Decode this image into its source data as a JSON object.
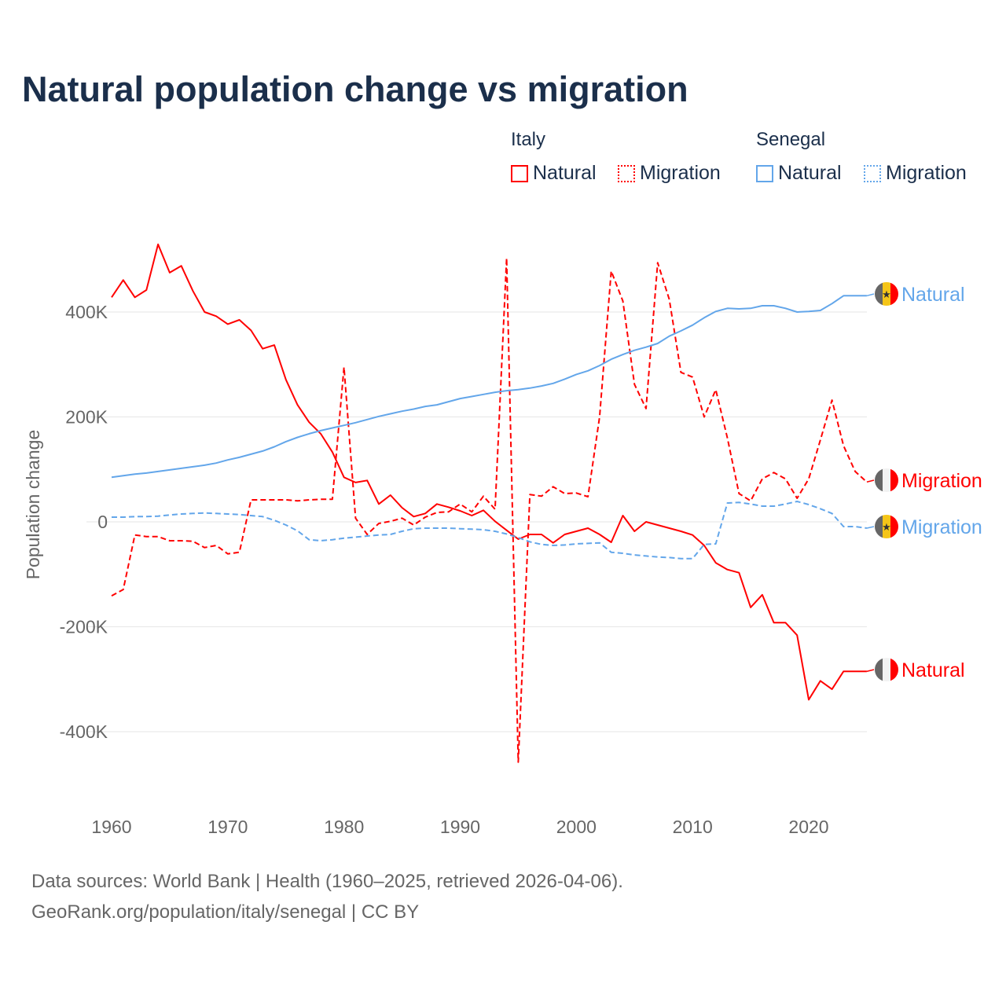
{
  "chart_data": {
    "type": "line",
    "title": "Natural population change vs migration",
    "xlabel": "",
    "ylabel": "Population change",
    "xlim": [
      1960,
      2025
    ],
    "ylim": [
      -480000,
      560000
    ],
    "x_ticks": [
      1960,
      1970,
      1980,
      1990,
      2000,
      2010,
      2020
    ],
    "x_tick_labels": [
      "1960",
      "1970",
      "1980",
      "1990",
      "2000",
      "2010",
      "2020"
    ],
    "y_ticks": [
      400000,
      200000,
      0,
      -200000,
      -400000
    ],
    "y_tick_labels": [
      "400K",
      "200K",
      "0",
      "-200K",
      "-400K"
    ],
    "grid": true,
    "legend_placement": "top-right",
    "legend": {
      "groups": [
        {
          "name": "Italy",
          "items": [
            "Natural",
            "Migration"
          ]
        },
        {
          "name": "Senegal",
          "items": [
            "Natural",
            "Migration"
          ]
        }
      ]
    },
    "x_start": 1960,
    "series": [
      {
        "name": "Italy Natural",
        "country": "Italy",
        "kind": "Natural",
        "end_label": "Natural",
        "color": "#ff0000",
        "dash": false,
        "values_thousands": [
          428,
          461,
          428,
          442,
          529,
          475,
          488,
          440,
          400,
          392,
          377,
          385,
          365,
          330,
          337,
          271,
          223,
          190,
          168,
          133,
          85,
          75,
          79,
          34,
          51,
          27,
          10,
          16,
          34,
          28,
          21,
          12,
          22,
          1,
          -16,
          -33,
          -24,
          -24,
          -40,
          -24,
          -18,
          -12,
          -24,
          -39,
          12,
          -18,
          0,
          -6,
          -12,
          -18,
          -25,
          -45,
          -78,
          -91,
          -97,
          -163,
          -139,
          -192,
          -192,
          -216,
          -339,
          -303,
          -319,
          -285,
          -285,
          -285
        ]
      },
      {
        "name": "Italy Migration",
        "country": "Italy",
        "kind": "Migration",
        "end_label": "Migration",
        "color": "#ff0000",
        "dash": true,
        "values_thousands": [
          -141,
          -129,
          -25,
          -28,
          -28,
          -36,
          -36,
          -37,
          -49,
          -45,
          -61,
          -58,
          42,
          42,
          42,
          42,
          40,
          42,
          43,
          43,
          295,
          7,
          -24,
          -3,
          1,
          7,
          -6,
          9,
          18,
          19,
          34,
          19,
          49,
          24,
          503,
          -458,
          52,
          49,
          67,
          54,
          55,
          48,
          200,
          478,
          421,
          262,
          216,
          494,
          424,
          285,
          276,
          200,
          252,
          160,
          54,
          40,
          82,
          94,
          82,
          45,
          82,
          156,
          232,
          145,
          96,
          76
        ]
      },
      {
        "name": "Senegal Natural",
        "country": "Senegal",
        "kind": "Natural",
        "end_label": "Natural",
        "color": "#63a6ea",
        "dash": false,
        "values_thousands": [
          85,
          88,
          91,
          93,
          96,
          99,
          102,
          105,
          108,
          112,
          118,
          123,
          129,
          135,
          143,
          153,
          161,
          168,
          174,
          179,
          184,
          189,
          195,
          201,
          206,
          211,
          215,
          220,
          223,
          229,
          235,
          239,
          243,
          247,
          250,
          252,
          255,
          259,
          264,
          272,
          281,
          288,
          298,
          310,
          319,
          327,
          333,
          340,
          354,
          364,
          375,
          389,
          401,
          407,
          406,
          407,
          412,
          412,
          407,
          400,
          401,
          403,
          416,
          431,
          431,
          431
        ]
      },
      {
        "name": "Senegal Migration",
        "country": "Senegal",
        "kind": "Migration",
        "end_label": "Migration",
        "color": "#63a6ea",
        "dash": true,
        "values_thousands": [
          9,
          9,
          10,
          10,
          11,
          13,
          15,
          16,
          17,
          16,
          15,
          14,
          12,
          10,
          3,
          -6,
          -17,
          -34,
          -36,
          -34,
          -31,
          -29,
          -27,
          -25,
          -24,
          -18,
          -13,
          -12,
          -12,
          -12,
          -13,
          -14,
          -15,
          -18,
          -23,
          -30,
          -38,
          -43,
          -45,
          -44,
          -42,
          -41,
          -40,
          -58,
          -60,
          -63,
          -65,
          -67,
          -68,
          -70,
          -70,
          -43,
          -42,
          36,
          37,
          34,
          30,
          30,
          34,
          39,
          33,
          25,
          16,
          -9,
          -9,
          -12
        ]
      }
    ]
  },
  "footer": {
    "line1": "Data sources: World Bank | Health (1960–2025, retrieved 2026-04-06).",
    "line2": "GeoRank.org/population/italy/senegal | CC BY"
  }
}
